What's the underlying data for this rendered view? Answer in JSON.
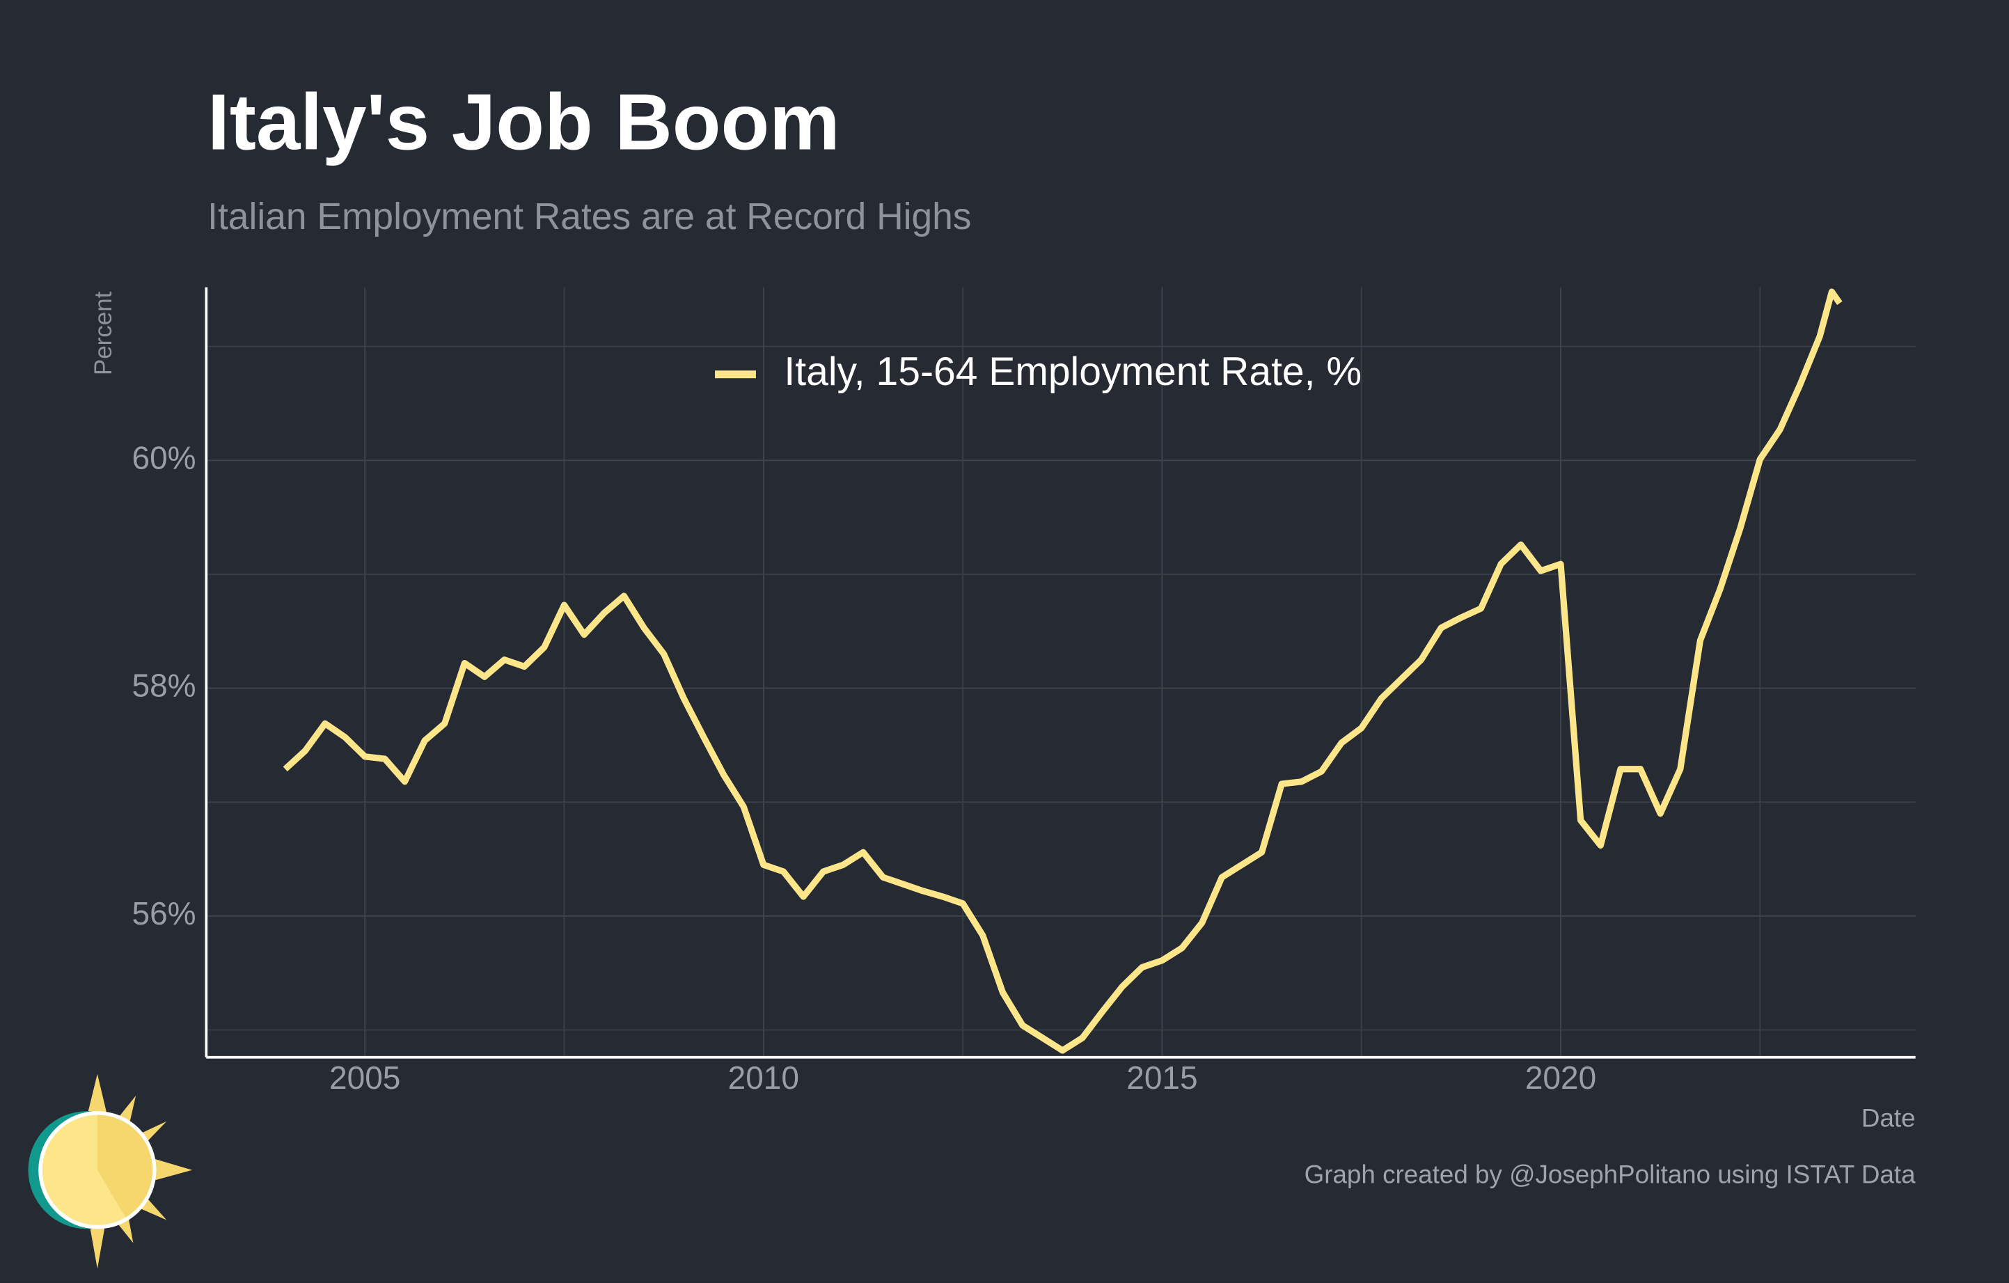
{
  "chart_data": {
    "type": "line",
    "title": "Italy's Job Boom",
    "subtitle": "Italian Employment Rates are at Record Highs",
    "y_label": "Percent",
    "x_label": "Date",
    "caption": "Graph created by @JosephPolitano using ISTAT Data",
    "x": [
      2004.0,
      2004.25,
      2004.5,
      2004.75,
      2005.0,
      2005.25,
      2005.5,
      2005.75,
      2006.0,
      2006.25,
      2006.5,
      2006.75,
      2007.0,
      2007.25,
      2007.5,
      2007.75,
      2008.0,
      2008.25,
      2008.5,
      2008.75,
      2009.0,
      2009.25,
      2009.5,
      2009.75,
      2010.0,
      2010.25,
      2010.5,
      2010.75,
      2011.0,
      2011.25,
      2011.5,
      2011.75,
      2012.0,
      2012.25,
      2012.5,
      2012.75,
      2013.0,
      2013.25,
      2013.5,
      2013.75,
      2014.0,
      2014.25,
      2014.5,
      2014.75,
      2015.0,
      2015.25,
      2015.5,
      2015.75,
      2016.0,
      2016.25,
      2016.5,
      2016.75,
      2017.0,
      2017.25,
      2017.5,
      2017.75,
      2018.0,
      2018.25,
      2018.5,
      2018.75,
      2019.0,
      2019.25,
      2019.5,
      2019.75,
      2020.0,
      2020.25,
      2020.5,
      2020.75,
      2021.0,
      2021.25,
      2021.5,
      2021.75,
      2022.0,
      2022.25,
      2022.5,
      2022.75,
      2023.0,
      2023.25,
      2023.4,
      2023.5
    ],
    "series": [
      {
        "name": "Italy, 15-64 Employment Rate, %",
        "color": "#fde68a",
        "values": [
          57.29,
          57.45,
          57.69,
          57.57,
          57.4,
          57.38,
          57.18,
          57.54,
          57.69,
          58.22,
          58.1,
          58.25,
          58.19,
          58.36,
          58.73,
          58.47,
          58.66,
          58.81,
          58.53,
          58.3,
          57.91,
          57.57,
          57.24,
          56.96,
          56.45,
          56.39,
          56.17,
          56.39,
          56.45,
          56.56,
          56.34,
          56.28,
          56.22,
          56.17,
          56.11,
          55.83,
          55.33,
          55.04,
          54.93,
          54.82,
          54.93,
          55.16,
          55.38,
          55.55,
          55.61,
          55.72,
          55.94,
          56.34,
          56.45,
          56.56,
          57.16,
          57.18,
          57.27,
          57.52,
          57.65,
          57.91,
          58.08,
          58.25,
          58.53,
          58.62,
          58.7,
          59.09,
          59.26,
          59.03,
          59.09,
          56.84,
          56.62,
          57.29,
          57.29,
          56.9,
          57.29,
          58.42,
          58.87,
          59.4,
          60.01,
          60.27,
          60.66,
          61.09,
          61.48,
          61.38
        ]
      }
    ],
    "xlim": [
      2003.01,
      2024.45
    ],
    "ylim": [
      54.76,
      61.52
    ],
    "xticks": [
      2005,
      2010,
      2015,
      2020
    ],
    "x_minor_ticks": [
      2007.5,
      2012.5,
      2017.5,
      2022.5
    ],
    "yticks": [
      {
        "value": 56,
        "label": "56%"
      },
      {
        "value": 58,
        "label": "58%"
      },
      {
        "value": 60,
        "label": "60%"
      }
    ],
    "y_minor_ticks": [
      55,
      57,
      59,
      61
    ],
    "grid": true,
    "legend": "top"
  }
}
